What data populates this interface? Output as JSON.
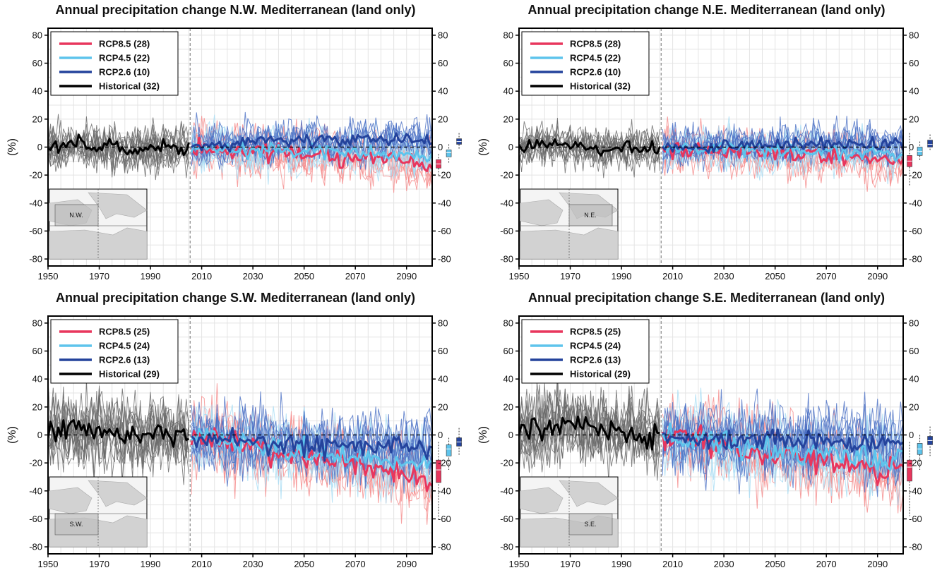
{
  "colors": {
    "rcp85": "#e8365d",
    "rcp85_light": "#f58a8a",
    "rcp45": "#5ec4ec",
    "rcp45_light": "#a6dcf4",
    "rcp26": "#24439c",
    "rcp26_light": "#4a6fc4",
    "historical": "#000000",
    "historical_member": "#6a6a6a"
  },
  "chart_data": [
    {
      "type": "line",
      "region": "N.W.",
      "title": "Annual precipitation change N.W. Mediterranean (land only)",
      "ylabel": "(%)",
      "xlim": [
        1950,
        2100
      ],
      "ylim": [
        -85,
        85
      ],
      "x_ticks": [
        "1950",
        "1970",
        "1990",
        "2010",
        "2030",
        "2050",
        "2070",
        "2090"
      ],
      "y_ticks": [
        "80",
        "60",
        "40",
        "20",
        "0",
        "-20",
        "-40",
        "-60",
        "-80"
      ],
      "grid": true,
      "legend_position": "top-left",
      "legend": [
        "RCP8.5 (28)",
        "RCP4.5 (22)",
        "RCP2.6 (10)",
        "Historical (32)"
      ],
      "member_spread": {
        "historical": 15,
        "rcp85": 18,
        "rcp45": 15,
        "rcp26": 14
      },
      "series": [
        {
          "key": "historical",
          "x_start": 1950,
          "x_end": 2005,
          "means": [
            0,
            2,
            0,
            -2,
            0,
            -1
          ]
        },
        {
          "key": "rcp85",
          "x_start": 2006,
          "x_end": 2100,
          "means": [
            -1,
            -2,
            -3,
            -3,
            -5,
            -5,
            -7,
            -8,
            -10,
            -12
          ]
        },
        {
          "key": "rcp45",
          "x_start": 2006,
          "x_end": 2100,
          "means": [
            -1,
            -1,
            -2,
            -2,
            -3,
            -3,
            -4,
            -4,
            -5,
            -6
          ]
        },
        {
          "key": "rcp26",
          "x_start": 2006,
          "x_end": 2100,
          "means": [
            0,
            2,
            3,
            4,
            4,
            5,
            5,
            6,
            5,
            4
          ]
        }
      ],
      "boxplots": [
        {
          "key": "rcp85",
          "median": -12,
          "q1": -15,
          "q3": -9,
          "min": -20,
          "max": -5
        },
        {
          "key": "rcp45",
          "median": -4,
          "q1": -7,
          "q3": -2,
          "min": -12,
          "max": 2
        },
        {
          "key": "rcp26",
          "median": 4,
          "q1": 2,
          "q3": 6,
          "min": -2,
          "max": 10
        }
      ]
    },
    {
      "type": "line",
      "region": "N.E.",
      "title": "Annual precipitation change N.E. Mediterranean (land only)",
      "ylabel": "(%)",
      "xlim": [
        1950,
        2100
      ],
      "ylim": [
        -85,
        85
      ],
      "x_ticks": [
        "1950",
        "1970",
        "1990",
        "2010",
        "2030",
        "2050",
        "2070",
        "2090"
      ],
      "y_ticks": [
        "80",
        "60",
        "40",
        "20",
        "0",
        "-20",
        "-40",
        "-60",
        "-80"
      ],
      "grid": true,
      "legend_position": "top-left",
      "legend": [
        "RCP8.5 (28)",
        "RCP4.5 (22)",
        "RCP2.6 (10)",
        "Historical (32)"
      ],
      "member_spread": {
        "historical": 13,
        "rcp85": 16,
        "rcp45": 14,
        "rcp26": 13
      },
      "series": [
        {
          "key": "historical",
          "x_start": 1950,
          "x_end": 2005,
          "means": [
            0,
            2,
            0,
            -1,
            0,
            -1
          ]
        },
        {
          "key": "rcp85",
          "x_start": 2006,
          "x_end": 2100,
          "means": [
            -1,
            -2,
            -2,
            -3,
            -4,
            -5,
            -6,
            -7,
            -9,
            -11
          ]
        },
        {
          "key": "rcp45",
          "x_start": 2006,
          "x_end": 2100,
          "means": [
            -1,
            -1,
            -1,
            -2,
            -2,
            -3,
            -3,
            -4,
            -4,
            -5
          ]
        },
        {
          "key": "rcp26",
          "x_start": 2006,
          "x_end": 2100,
          "means": [
            0,
            0,
            1,
            1,
            1,
            2,
            2,
            2,
            2,
            2
          ]
        }
      ],
      "boxplots": [
        {
          "key": "rcp85",
          "median": -10,
          "q1": -14,
          "q3": -6,
          "min": -28,
          "max": 10
        },
        {
          "key": "rcp45",
          "median": -3,
          "q1": -6,
          "q3": 0,
          "min": -10,
          "max": 4
        },
        {
          "key": "rcp26",
          "median": 2,
          "q1": 0,
          "q3": 5,
          "min": -3,
          "max": 9
        }
      ]
    },
    {
      "type": "line",
      "region": "S.W.",
      "title": "Annual precipitation change S.W. Mediterranean (land only)",
      "ylabel": "(%)",
      "xlim": [
        1950,
        2100
      ],
      "ylim": [
        -85,
        85
      ],
      "x_ticks": [
        "1950",
        "1970",
        "1990",
        "2010",
        "2030",
        "2050",
        "2070",
        "2090"
      ],
      "y_ticks": [
        "80",
        "60",
        "40",
        "20",
        "0",
        "-20",
        "-40",
        "-60",
        "-80"
      ],
      "grid": true,
      "legend_position": "top-left",
      "legend": [
        "RCP8.5 (25)",
        "RCP4.5 (24)",
        "RCP2.6 (13)",
        "Historical (29)"
      ],
      "member_spread": {
        "historical": 24,
        "rcp85": 24,
        "rcp45": 22,
        "rcp26": 22
      },
      "series": [
        {
          "key": "historical",
          "x_start": 1950,
          "x_end": 2005,
          "means": [
            5,
            3,
            2,
            0,
            0,
            -1
          ]
        },
        {
          "key": "rcp85",
          "x_start": 2006,
          "x_end": 2100,
          "means": [
            -2,
            -4,
            -8,
            -12,
            -15,
            -18,
            -21,
            -25,
            -28,
            -33
          ]
        },
        {
          "key": "rcp45",
          "x_start": 2006,
          "x_end": 2100,
          "means": [
            -2,
            -3,
            -6,
            -9,
            -11,
            -13,
            -15,
            -17,
            -19,
            -21
          ]
        },
        {
          "key": "rcp26",
          "x_start": 2006,
          "x_end": 2100,
          "means": [
            -2,
            -3,
            -4,
            -6,
            -7,
            -8,
            -8,
            -9,
            -9,
            -9
          ]
        }
      ],
      "boxplots": [
        {
          "key": "rcp85",
          "median": -25,
          "q1": -34,
          "q3": -18,
          "min": -60,
          "max": -5
        },
        {
          "key": "rcp45",
          "median": -10,
          "q1": -15,
          "q3": -7,
          "min": -25,
          "max": -2
        },
        {
          "key": "rcp26",
          "median": -5,
          "q1": -8,
          "q3": -2,
          "min": -15,
          "max": 5
        }
      ]
    },
    {
      "type": "line",
      "region": "S.E.",
      "title": "Annual precipitation change S.E. Mediterranean (land only)",
      "ylabel": "(%)",
      "xlim": [
        1950,
        2100
      ],
      "ylim": [
        -85,
        85
      ],
      "x_ticks": [
        "1950",
        "1970",
        "1990",
        "2010",
        "2030",
        "2050",
        "2070",
        "2090"
      ],
      "y_ticks": [
        "80",
        "60",
        "40",
        "20",
        "0",
        "-20",
        "-40",
        "-60",
        "-80"
      ],
      "grid": true,
      "legend_position": "top-left",
      "legend": [
        "RCP8.5 (25)",
        "RCP4.5 (24)",
        "RCP2.6 (13)",
        "Historical (29)"
      ],
      "member_spread": {
        "historical": 24,
        "rcp85": 25,
        "rcp45": 24,
        "rcp26": 24
      },
      "series": [
        {
          "key": "historical",
          "x_start": 1950,
          "x_end": 2005,
          "means": [
            2,
            5,
            8,
            4,
            2,
            0
          ]
        },
        {
          "key": "rcp85",
          "x_start": 2006,
          "x_end": 2100,
          "means": [
            -1,
            -4,
            -7,
            -10,
            -13,
            -16,
            -18,
            -21,
            -24,
            -27
          ]
        },
        {
          "key": "rcp45",
          "x_start": 2006,
          "x_end": 2100,
          "means": [
            -2,
            -3,
            -6,
            -8,
            -10,
            -12,
            -14,
            -15,
            -16,
            -17
          ]
        },
        {
          "key": "rcp26",
          "x_start": 2006,
          "x_end": 2100,
          "means": [
            -1,
            -2,
            -3,
            -4,
            -4,
            -5,
            -5,
            -5,
            -6,
            -6
          ]
        }
      ],
      "boxplots": [
        {
          "key": "rcp85",
          "median": -23,
          "q1": -33,
          "q3": -18,
          "min": -58,
          "max": -5
        },
        {
          "key": "rcp45",
          "median": -10,
          "q1": -14,
          "q3": -6,
          "min": -25,
          "max": 0
        },
        {
          "key": "rcp26",
          "median": -4,
          "q1": -7,
          "q3": -1,
          "min": -15,
          "max": 6
        }
      ]
    }
  ]
}
